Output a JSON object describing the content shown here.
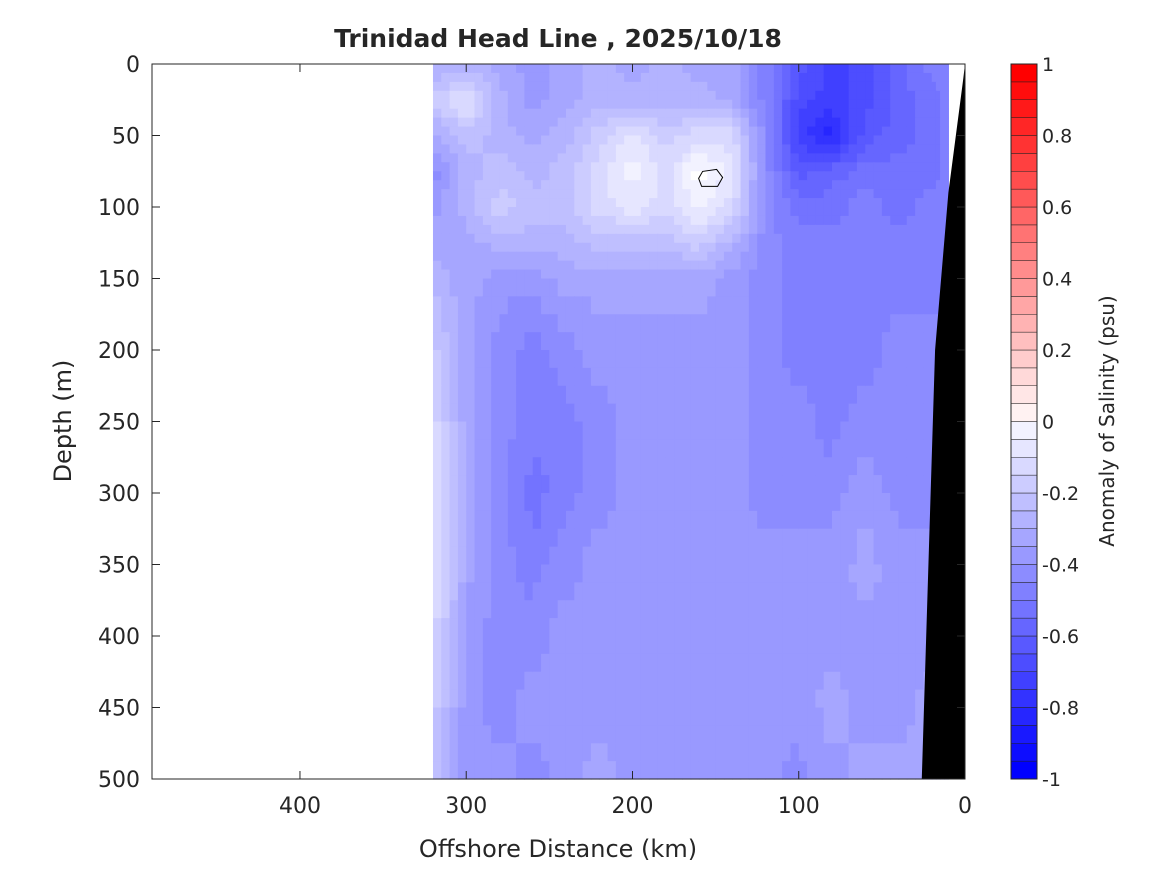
{
  "chart_data": {
    "type": "heatmap",
    "title": "Trinidad Head Line , 2025/10/18",
    "xlabel": "Offshore Distance (km)",
    "ylabel": "Depth (m)",
    "colorbar_label": "Anomaly of Salinity (psu)",
    "xlim": [
      489,
      0
    ],
    "ylim": [
      0,
      500
    ],
    "xticks": [
      400,
      300,
      200,
      100,
      0
    ],
    "yticks": [
      0,
      50,
      100,
      150,
      200,
      250,
      300,
      350,
      400,
      450,
      500
    ],
    "clim": [
      -1,
      1
    ],
    "cticks": [
      1,
      0.8,
      0.6,
      0.4,
      0.2,
      0,
      -0.2,
      -0.4,
      -0.6,
      -0.8,
      -1
    ],
    "colors": {
      "negative": "#0000ff",
      "zero": "#ffffff",
      "positive": "#ff0000",
      "bathymetry": "#000000"
    },
    "distance_km": [
      320,
      300,
      280,
      260,
      240,
      220,
      200,
      180,
      160,
      140,
      120,
      100,
      80,
      60,
      40,
      20,
      10
    ],
    "depth_m": [
      0,
      25,
      50,
      75,
      100,
      125,
      150,
      200,
      250,
      300,
      350,
      400,
      450,
      500
    ],
    "values": [
      [
        -0.35,
        -0.3,
        -0.35,
        -0.4,
        -0.35,
        -0.3,
        -0.35,
        -0.3,
        -0.35,
        -0.35,
        -0.5,
        -0.65,
        -0.75,
        -0.7,
        -0.6,
        -0.5,
        -0.5
      ],
      [
        -0.2,
        -0.1,
        -0.3,
        -0.4,
        -0.35,
        -0.3,
        -0.3,
        -0.3,
        -0.3,
        -0.35,
        -0.5,
        -0.7,
        -0.75,
        -0.7,
        -0.6,
        -0.55,
        -0.5
      ],
      [
        -0.35,
        -0.25,
        -0.3,
        -0.35,
        -0.3,
        -0.2,
        -0.1,
        -0.2,
        -0.15,
        -0.15,
        -0.45,
        -0.75,
        -0.85,
        -0.65,
        -0.6,
        -0.55,
        -0.5
      ],
      [
        -0.45,
        -0.3,
        -0.25,
        -0.3,
        -0.25,
        -0.15,
        -0.05,
        -0.15,
        0.0,
        -0.1,
        -0.45,
        -0.65,
        -0.6,
        -0.55,
        -0.55,
        -0.55,
        -0.5
      ],
      [
        -0.4,
        -0.3,
        -0.2,
        -0.25,
        -0.25,
        -0.15,
        -0.1,
        -0.15,
        -0.05,
        -0.15,
        -0.45,
        -0.55,
        -0.55,
        -0.5,
        -0.55,
        -0.5,
        -0.5
      ],
      [
        -0.35,
        -0.35,
        -0.3,
        -0.3,
        -0.3,
        -0.25,
        -0.25,
        -0.25,
        -0.2,
        -0.3,
        -0.45,
        -0.5,
        -0.5,
        -0.5,
        -0.5,
        -0.5,
        -0.5
      ],
      [
        -0.3,
        -0.35,
        -0.4,
        -0.4,
        -0.35,
        -0.35,
        -0.35,
        -0.35,
        -0.35,
        -0.4,
        -0.45,
        -0.5,
        -0.5,
        -0.5,
        -0.5,
        -0.5,
        -0.5
      ],
      [
        -0.2,
        -0.35,
        -0.45,
        -0.5,
        -0.45,
        -0.4,
        -0.4,
        -0.4,
        -0.4,
        -0.4,
        -0.45,
        -0.5,
        -0.5,
        -0.5,
        -0.45,
        -0.45,
        -0.45
      ],
      [
        -0.15,
        -0.35,
        -0.45,
        -0.5,
        -0.5,
        -0.45,
        -0.4,
        -0.4,
        -0.4,
        -0.4,
        -0.45,
        -0.45,
        -0.5,
        -0.45,
        -0.45,
        -0.45,
        -0.45
      ],
      [
        -0.1,
        -0.35,
        -0.45,
        -0.55,
        -0.5,
        -0.45,
        -0.4,
        -0.4,
        -0.4,
        -0.4,
        -0.45,
        -0.45,
        -0.45,
        -0.4,
        -0.45,
        -0.45,
        -0.45
      ],
      [
        -0.1,
        -0.35,
        -0.45,
        -0.5,
        -0.45,
        -0.4,
        -0.4,
        -0.4,
        -0.4,
        -0.4,
        -0.4,
        -0.4,
        -0.4,
        -0.35,
        -0.4,
        -0.4,
        -0.4
      ],
      [
        -0.15,
        -0.4,
        -0.45,
        -0.45,
        -0.4,
        -0.4,
        -0.4,
        -0.4,
        -0.4,
        -0.4,
        -0.4,
        -0.4,
        -0.4,
        -0.4,
        -0.4,
        -0.4,
        -0.4
      ],
      [
        -0.2,
        -0.4,
        -0.45,
        -0.4,
        -0.4,
        -0.4,
        -0.4,
        -0.4,
        -0.4,
        -0.4,
        -0.4,
        -0.4,
        -0.35,
        -0.4,
        -0.4,
        -0.35,
        -0.35
      ],
      [
        -0.25,
        -0.4,
        -0.4,
        -0.45,
        -0.4,
        -0.35,
        -0.4,
        -0.4,
        -0.4,
        -0.4,
        -0.4,
        -0.45,
        -0.4,
        -0.35,
        -0.35,
        -0.35,
        -0.35
      ]
    ],
    "zero_contour_center": {
      "distance_km": 153,
      "depth_m": 80
    },
    "bathymetry": [
      [
        0,
        0
      ],
      [
        1,
        10
      ],
      [
        10,
        90
      ],
      [
        18,
        200
      ],
      [
        26,
        500
      ],
      [
        0,
        500
      ]
    ]
  }
}
